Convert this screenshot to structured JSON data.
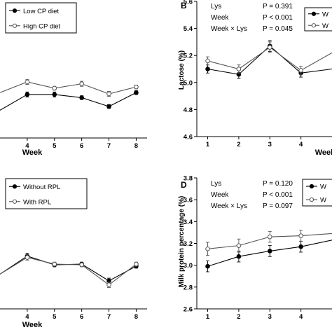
{
  "chart_data": [
    {
      "id": "A",
      "type": "line",
      "panel_label": "",
      "x": [
        3,
        4,
        5,
        6,
        7,
        8
      ],
      "xlim": [
        3,
        8.4
      ],
      "ylim": [
        3.28,
        5.47
      ],
      "xlabel": "Week",
      "ylabel": "",
      "ticks_x": [
        "4",
        "5",
        "6",
        "7",
        "8"
      ],
      "legend": "top-left",
      "series": [
        {
          "name": "Low CP diet",
          "marker": "filled",
          "values": [
            3.72,
            3.97,
            3.97,
            3.92,
            3.78,
            4.0
          ],
          "errors": [
            0.04,
            0.04,
            0.04,
            0.03,
            0.03,
            0.03
          ]
        },
        {
          "name": "High CP diet",
          "marker": "open",
          "values": [
            4.0,
            4.17,
            4.07,
            4.14,
            3.98,
            4.09
          ],
          "errors": [
            0.04,
            0.04,
            0.03,
            0.04,
            0.04,
            0.03
          ]
        }
      ],
      "stats": []
    },
    {
      "id": "B",
      "type": "line",
      "panel_label": "B",
      "x": [
        1,
        2,
        3,
        4,
        5
      ],
      "xlim": [
        0.65,
        5
      ],
      "ylim": [
        4.6,
        5.6
      ],
      "xlabel": "Week",
      "ylabel": "Lactose (%)",
      "ticks_x": [
        "1",
        "2",
        "3",
        "4"
      ],
      "ticks_y": [
        "4.6",
        "4.8",
        "5.0",
        "5.2",
        "5.4",
        "5.6"
      ],
      "legend": "top-right",
      "series": [
        {
          "name": "W",
          "marker": "filled",
          "values": [
            5.1,
            5.06,
            5.27,
            5.07,
            5.1
          ],
          "errors": [
            0.03,
            0.03,
            0.04,
            0.03,
            0.03
          ]
        },
        {
          "name": "W",
          "marker": "open",
          "values": [
            5.16,
            5.1,
            5.26,
            5.09,
            5.22
          ],
          "errors": [
            0.03,
            0.03,
            0.04,
            0.03,
            0.03
          ]
        }
      ],
      "stats": [
        {
          "label": "Lys",
          "p": "P = 0.391"
        },
        {
          "label": "Week",
          "p": "P < 0.001"
        },
        {
          "label": "Week × Lys",
          "p": "P = 0.045"
        }
      ]
    },
    {
      "id": "C",
      "type": "line",
      "panel_label": "",
      "x": [
        3,
        4,
        5,
        6,
        7,
        8
      ],
      "xlim": [
        3,
        8.4
      ],
      "ylim": [
        2.4,
        4.35
      ],
      "xlabel": "Week",
      "ylabel": "",
      "ticks_x": [
        "4",
        "5",
        "6",
        "7",
        "8"
      ],
      "legend": "top-left",
      "series": [
        {
          "name": "Without RPL",
          "marker": "filled",
          "values": [
            2.92,
            3.19,
            3.06,
            3.07,
            2.82,
            3.04
          ],
          "errors": [
            0.03,
            0.04,
            0.03,
            0.03,
            0.04,
            0.03
          ]
        },
        {
          "name": "With RPL",
          "marker": "open",
          "values": [
            2.92,
            3.17,
            3.07,
            3.06,
            2.76,
            3.07
          ],
          "errors": [
            0.03,
            0.04,
            0.03,
            0.03,
            0.04,
            0.03
          ]
        }
      ],
      "stats": []
    },
    {
      "id": "D",
      "type": "line",
      "panel_label": "D",
      "x": [
        1,
        2,
        3,
        4,
        5
      ],
      "xlim": [
        0.65,
        5
      ],
      "ylim": [
        2.6,
        3.8
      ],
      "xlabel": "Week",
      "ylabel": "Milk protein percentage (%)",
      "ticks_x": [
        "1",
        "2",
        "3",
        "4"
      ],
      "ticks_y": [
        "2.6",
        "2.8",
        "3.0",
        "3.2",
        "3.4",
        "3.6",
        "3.8"
      ],
      "legend": "top-right",
      "series": [
        {
          "name": "W",
          "marker": "filled",
          "values": [
            2.99,
            3.08,
            3.13,
            3.17,
            3.23
          ],
          "errors": [
            0.05,
            0.05,
            0.05,
            0.05,
            0.05
          ]
        },
        {
          "name": "W",
          "marker": "open",
          "values": [
            3.15,
            3.18,
            3.26,
            3.27,
            3.29
          ],
          "errors": [
            0.06,
            0.06,
            0.05,
            0.05,
            0.05
          ]
        }
      ],
      "stats": [
        {
          "label": "Lys",
          "p": "P = 0.120"
        },
        {
          "label": "Week",
          "p": "P < 0.001"
        },
        {
          "label": "Week × Lys",
          "p": "P = 0.097"
        }
      ]
    }
  ]
}
